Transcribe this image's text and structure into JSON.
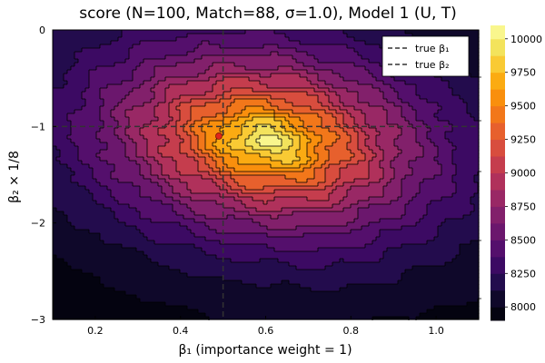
{
  "chart_data": {
    "type": "heatmap",
    "title": "score (N=100, Match=88, σ=1.0), Model 1 (U, T)",
    "xlabel": "β₁ (importance weight = 1)",
    "ylabel": "β₂ × 1/8",
    "xlim": [
      0.1,
      1.1
    ],
    "ylim": [
      -3,
      0
    ],
    "xticks": [
      "0.2",
      "0.4",
      "0.6",
      "0.8",
      "1.0"
    ],
    "xtick_values": [
      0.2,
      0.4,
      0.6,
      0.8,
      1.0
    ],
    "yticks": [
      "0",
      "−1",
      "−2",
      "−3"
    ],
    "ytick_values": [
      0,
      -1,
      -2,
      -3
    ],
    "colorbar": {
      "min": 7900,
      "max": 10100,
      "ticks": [
        "8000",
        "8250",
        "8500",
        "8750",
        "9000",
        "9250",
        "9500",
        "9750",
        "10000"
      ],
      "tick_values": [
        8000,
        8250,
        8500,
        8750,
        9000,
        9250,
        9500,
        9750,
        10000
      ],
      "levels": [
        7900,
        8000,
        8125,
        8250,
        8375,
        8500,
        8625,
        8750,
        8875,
        9000,
        9125,
        9250,
        9375,
        9500,
        9625,
        9750,
        9875,
        10000,
        10100
      ]
    },
    "peak": {
      "x": 0.6,
      "y": -1.15,
      "value": 10050
    },
    "true_beta1": 0.5,
    "true_beta2": -1.0,
    "estimate_point": {
      "x": 0.49,
      "y": -1.1
    },
    "legend": {
      "placement": "top-right",
      "entries": [
        "true β₁",
        "true β₂"
      ]
    },
    "grid": true,
    "palette": [
      "#000004",
      "#0c0826",
      "#240c4f",
      "#420a68",
      "#5d126e",
      "#781c6d",
      "#932667",
      "#ae305c",
      "#c73e4c",
      "#dd513a",
      "#ed6925",
      "#f8850f",
      "#fba40a",
      "#f9c932",
      "#f2e661",
      "#fcffa4"
    ]
  }
}
